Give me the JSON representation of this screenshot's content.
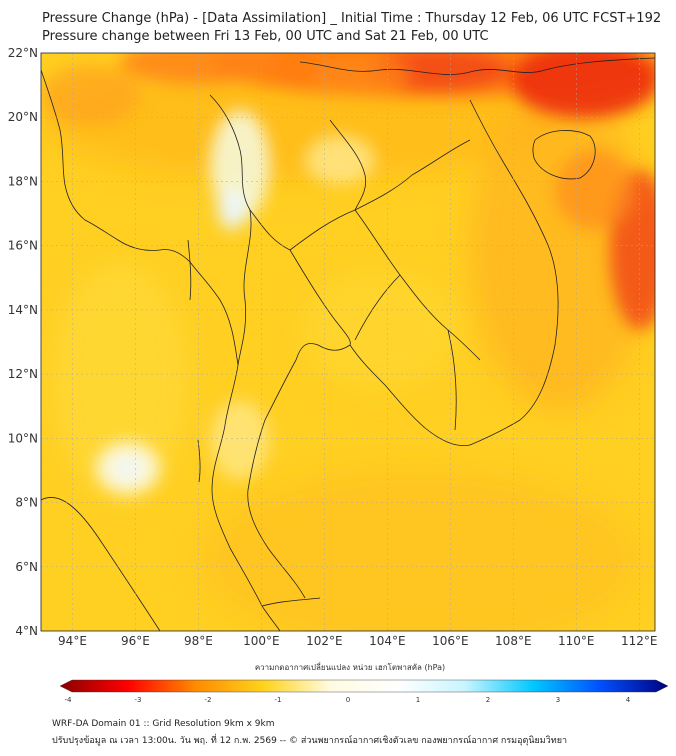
{
  "title": {
    "line1": "Pressure Change (hPa) - [Data Assimilation] _ Initial Time : Thursday 12 Feb, 06 UTC FCST+192",
    "line2": "Pressure change between Fri 13 Feb, 00 UTC and Sat 21 Feb, 00 UTC"
  },
  "map": {
    "lon_range": [
      93,
      112.5
    ],
    "lat_range": [
      4,
      22
    ],
    "lon_ticks": [
      "94°E",
      "96°E",
      "98°E",
      "100°E",
      "102°E",
      "104°E",
      "106°E",
      "108°E",
      "110°E",
      "112°E"
    ],
    "lat_ticks": [
      "22°N",
      "20°N",
      "18°N",
      "16°N",
      "14°N",
      "12°N",
      "10°N",
      "8°N",
      "6°N",
      "4°N"
    ],
    "lon_tick_values": [
      94,
      96,
      98,
      100,
      102,
      104,
      106,
      108,
      110,
      112
    ],
    "lat_tick_values": [
      22,
      20,
      18,
      16,
      14,
      12,
      10,
      8,
      6,
      4
    ],
    "grid": true,
    "base_color": "#ffcf22",
    "colors": {
      "deep_orange": "#ff6a0f",
      "red": "#f03a12",
      "pale": "#f5f2cf",
      "whiteish": "#eef7ff",
      "border": "#222222",
      "grid": "#aaaaaa"
    }
  },
  "colorbar": {
    "title": "ความกดอากาศเปลี่ยนแปลง หน่วย เฮกโตพาสคัล (hPa)",
    "tick_labels": [
      "-4",
      "-3",
      "-2",
      "-1",
      "0",
      "1",
      "2",
      "3",
      "4"
    ],
    "tick_values": [
      -4,
      -3,
      -2,
      -1,
      0,
      1,
      2,
      3,
      4
    ],
    "range": [
      -4,
      4
    ],
    "stops": [
      "#8b0000",
      "#ff0000",
      "#ff8a00",
      "#ffd21a",
      "#fffbe0",
      "#ffffff",
      "#c8f4ff",
      "#00c8ff",
      "#0050ff",
      "#000080"
    ]
  },
  "footer": {
    "line1": "WRF-DA Domain 01 :: Grid Resolution 9km x 9km",
    "line2": "ปรับปรุงข้อมูล ณ เวลา 13:00น. วัน พฤ. ที่ 12 ก.พ. 2569 -- © ส่วนพยากรณ์อากาศเชิงตัวเลข กองพยากรณ์อากาศ กรมอุตุนิยมวิทยา"
  }
}
